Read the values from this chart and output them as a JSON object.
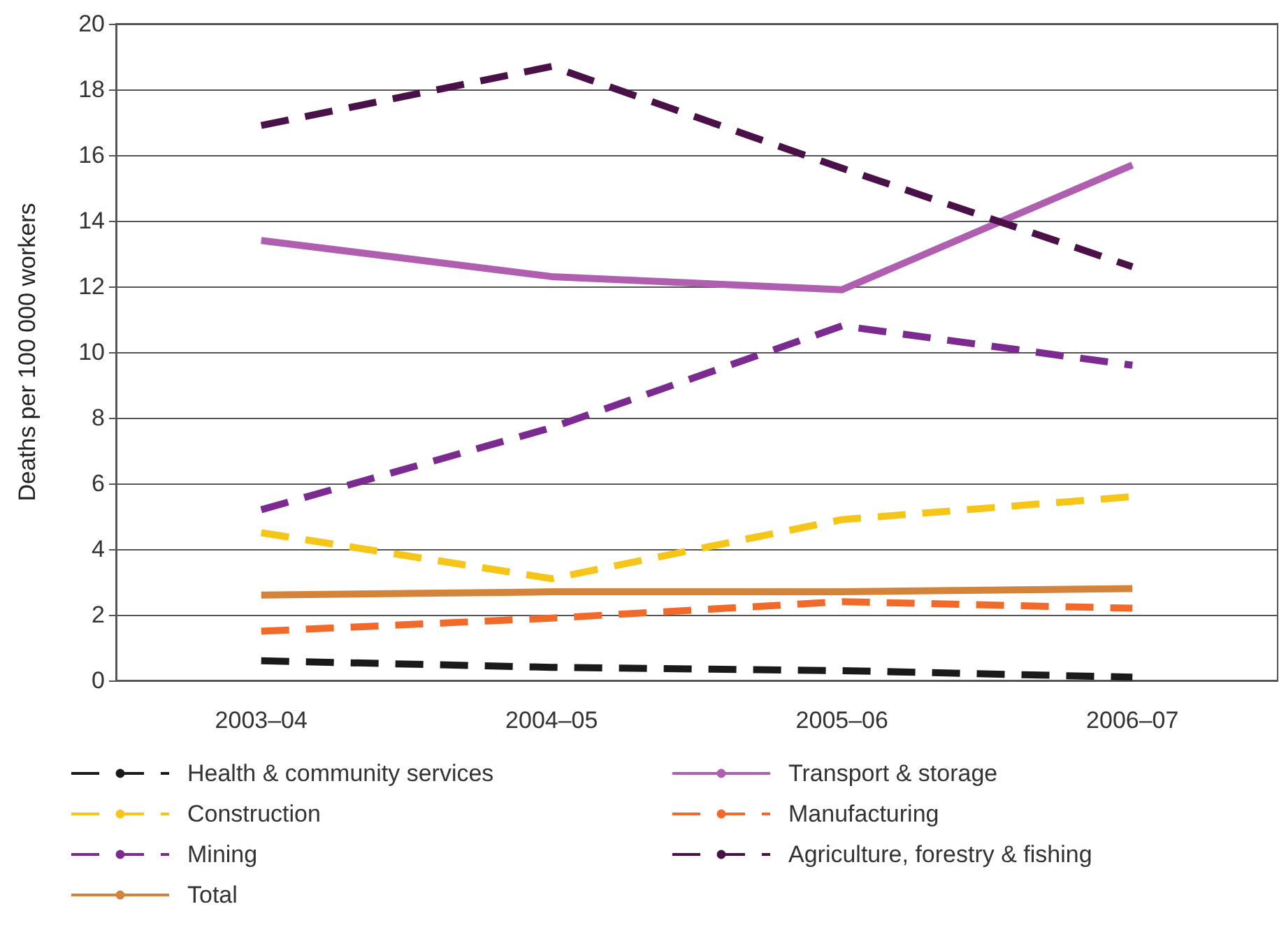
{
  "chart_data": {
    "type": "line",
    "ylabel": "Deaths per 100 000 workers",
    "categories": [
      "2003–04",
      "2004–05",
      "2005–06",
      "2006–07"
    ],
    "ylim": [
      0,
      20
    ],
    "yticks": [
      0,
      2,
      4,
      6,
      8,
      10,
      12,
      14,
      16,
      18,
      20
    ],
    "grid": "y",
    "legend": "bottom",
    "marker": "none",
    "series": [
      {
        "name": "Health & community services",
        "color": "#1a1a1a",
        "line_style": "dashed",
        "values": [
          0.6,
          0.4,
          0.3,
          0.1
        ]
      },
      {
        "name": "Transport & storage",
        "color": "#b05fb0",
        "line_style": "solid",
        "values": [
          13.4,
          12.3,
          11.9,
          15.7
        ]
      },
      {
        "name": "Construction",
        "color": "#f5c518",
        "line_style": "dashed",
        "values": [
          4.5,
          3.1,
          4.9,
          5.6
        ]
      },
      {
        "name": "Manufacturing",
        "color": "#f26a2a",
        "line_style": "dashed",
        "values": [
          1.5,
          1.9,
          2.4,
          2.2
        ]
      },
      {
        "name": "Mining",
        "color": "#7b2a90",
        "line_style": "dashed",
        "values": [
          5.2,
          7.7,
          10.8,
          9.6
        ]
      },
      {
        "name": "Agriculture, forestry & fishing",
        "color": "#4a1048",
        "line_style": "dashed",
        "values": [
          16.9,
          18.7,
          15.6,
          12.6
        ]
      },
      {
        "name": "Total",
        "color": "#d4843a",
        "line_style": "solid",
        "values": [
          2.6,
          2.7,
          2.7,
          2.8
        ]
      }
    ]
  }
}
